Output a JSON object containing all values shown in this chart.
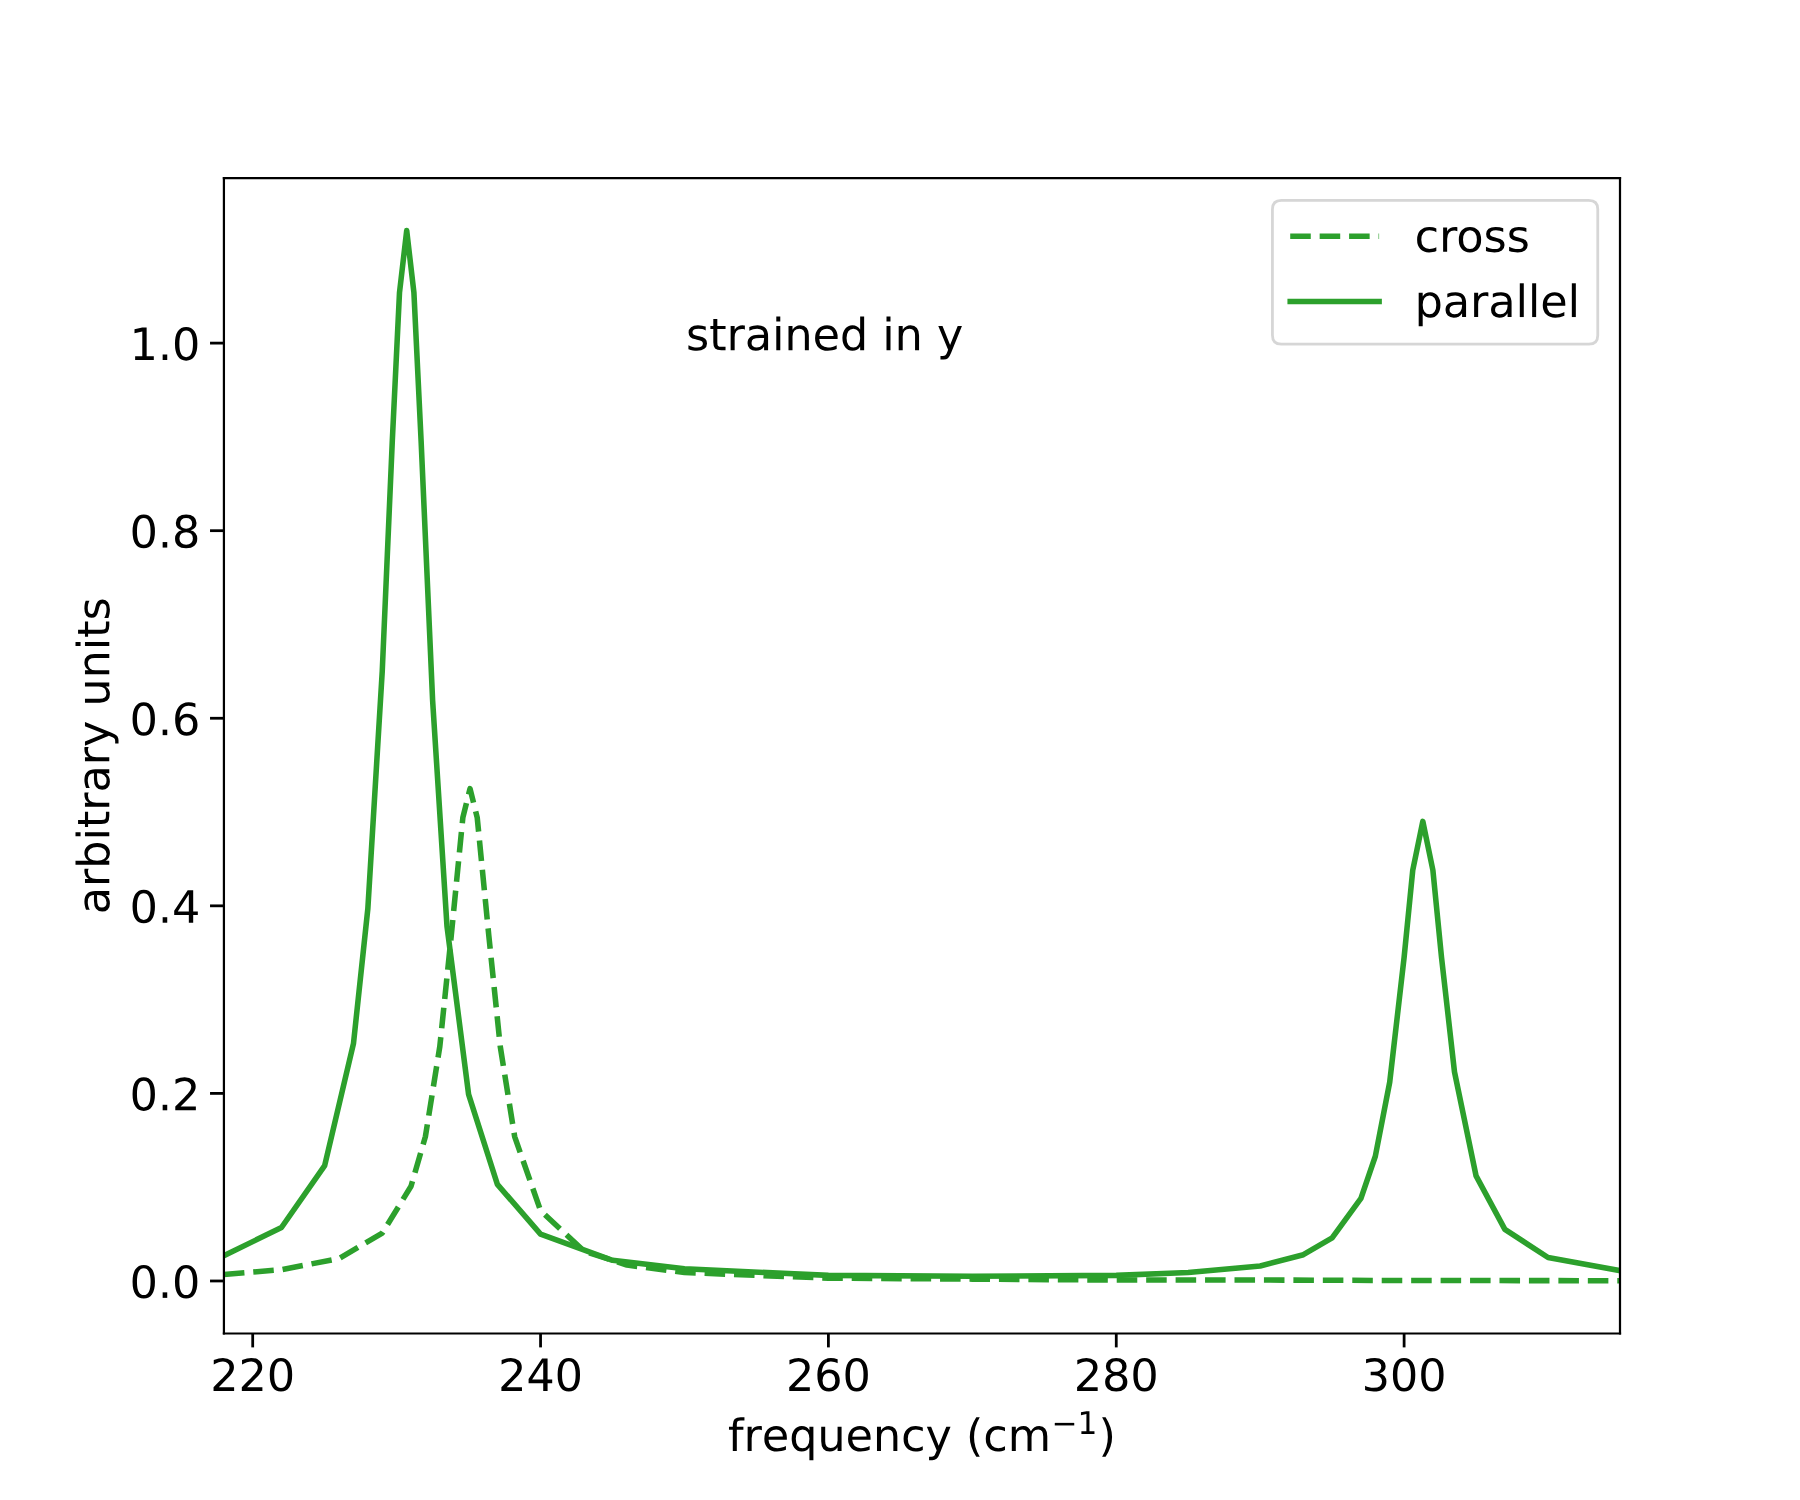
{
  "chart_data": {
    "type": "line",
    "xlabel": "frequency (cm$^{−1}$)",
    "ylabel": "arbitrary units",
    "annotations": [
      "strained in y"
    ],
    "series": [
      {
        "name": "cross",
        "color": "#2ca02c",
        "line_style": "dashed",
        "x": [
          218,
          222,
          226,
          229,
          231,
          232,
          233,
          233.8,
          234.6,
          235.1,
          235.6,
          236.4,
          237.2,
          238.2,
          240,
          243,
          246,
          250,
          260,
          270,
          280,
          290,
          300,
          315
        ],
        "values": [
          0.007,
          0.012,
          0.024,
          0.051,
          0.101,
          0.154,
          0.25,
          0.369,
          0.494,
          0.525,
          0.494,
          0.369,
          0.25,
          0.154,
          0.075,
          0.032,
          0.017,
          0.009,
          0.003,
          0.002,
          0.001,
          0.001,
          0.0005,
          0.0003
        ]
      },
      {
        "name": "parallel",
        "color": "#2ca02c",
        "line_style": "solid",
        "x": [
          218,
          222,
          225,
          227,
          228,
          229,
          229.7,
          230.2,
          230.7,
          231.2,
          231.7,
          232.5,
          233.5,
          235,
          237,
          240,
          245,
          250,
          260,
          270,
          280,
          285,
          290,
          293,
          295,
          297,
          298,
          299,
          300,
          300.6,
          301.3,
          302,
          302.6,
          303.5,
          305,
          307,
          310,
          315
        ],
        "values": [
          0.027,
          0.057,
          0.123,
          0.253,
          0.397,
          0.65,
          0.896,
          1.054,
          1.12,
          1.054,
          0.896,
          0.619,
          0.378,
          0.199,
          0.103,
          0.05,
          0.022,
          0.013,
          0.006,
          0.005,
          0.006,
          0.009,
          0.016,
          0.028,
          0.046,
          0.088,
          0.133,
          0.212,
          0.345,
          0.438,
          0.49,
          0.438,
          0.345,
          0.223,
          0.112,
          0.055,
          0.025,
          0.011
        ]
      }
    ],
    "xlim": [
      218,
      315
    ],
    "xticks": [
      220,
      240,
      260,
      280,
      300
    ],
    "ylim": [
      -0.056,
      1.176
    ],
    "yticks": [
      {
        "value": 0,
        "label": "0.0"
      },
      {
        "value": 0.2,
        "label": "0.2"
      },
      {
        "value": 0.4,
        "label": "0.4"
      },
      {
        "value": 0.6,
        "label": "0.6"
      },
      {
        "value": 0.8,
        "label": "0.8"
      },
      {
        "value": 1.0,
        "label": "1.0"
      }
    ],
    "grid": false,
    "legend": "top right",
    "marker": "none"
  }
}
